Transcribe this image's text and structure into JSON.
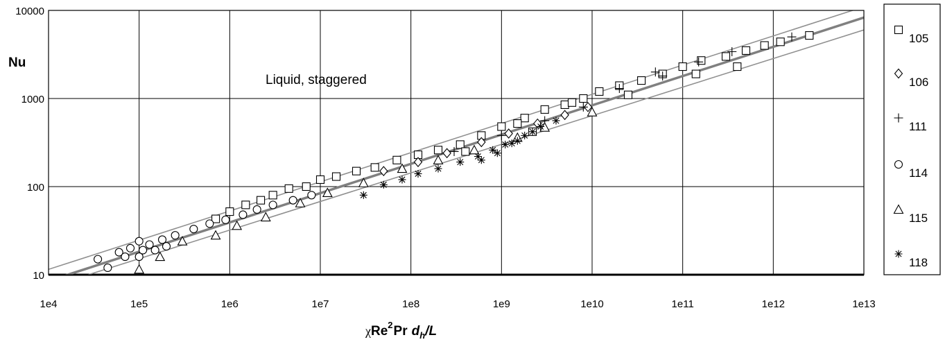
{
  "chart_data": {
    "type": "scatter",
    "title": "",
    "annotation": "Liquid, staggered",
    "ylabel": "Nu",
    "xlabel": {
      "prefix": "χ",
      "re": "Re",
      "sup": "2",
      "pr": "Pr",
      "d": "d",
      "sub": "h",
      "tail": "/L"
    },
    "x_scale": "log",
    "y_scale": "log",
    "xlim": [
      10000,
      10000000000000
    ],
    "ylim": [
      10,
      10000
    ],
    "x_ticks": [
      "1e4",
      "1e5",
      "1e6",
      "1e7",
      "1e8",
      "1e9",
      "1e10",
      "1e11",
      "1e12",
      "1e13"
    ],
    "y_ticks": [
      "10",
      "100",
      "1000",
      "10000"
    ],
    "grid": true,
    "legend_position": "right",
    "reference_lines": [
      {
        "name": "correlation",
        "points": [
          [
            10000,
            8.5
          ],
          [
            10000000000000,
            8300
          ]
        ],
        "color": "#808080"
      },
      {
        "name": "upper bound",
        "points": [
          [
            10000,
            11.5
          ],
          [
            10000000000000,
            11000
          ]
        ],
        "color": "#909090"
      },
      {
        "name": "lower bound",
        "points": [
          [
            10000,
            7.2
          ],
          [
            10000000000000,
            6000
          ]
        ],
        "color": "#909090"
      }
    ],
    "series": [
      {
        "name": "105",
        "marker": "square",
        "points": [
          [
            700000,
            43
          ],
          [
            1000000,
            52
          ],
          [
            1500000,
            62
          ],
          [
            2200000,
            70
          ],
          [
            3000000,
            80
          ],
          [
            4500000,
            95
          ],
          [
            7000000,
            100
          ],
          [
            10000000,
            120
          ],
          [
            15000000,
            130
          ],
          [
            25000000,
            150
          ],
          [
            40000000,
            165
          ],
          [
            70000000,
            200
          ],
          [
            120000000,
            230
          ],
          [
            200000000,
            260
          ],
          [
            350000000,
            300
          ],
          [
            600000000,
            380
          ],
          [
            1000000000,
            480
          ],
          [
            1800000000,
            600
          ],
          [
            3000000000,
            750
          ],
          [
            5000000000,
            850
          ],
          [
            8000000000,
            1000
          ],
          [
            12000000000,
            1200
          ],
          [
            20000000000,
            1400
          ],
          [
            35000000000,
            1600
          ],
          [
            60000000000,
            1900
          ],
          [
            100000000000,
            2300
          ],
          [
            160000000000,
            2700
          ],
          [
            300000000000,
            3000
          ],
          [
            500000000000,
            3500
          ],
          [
            800000000000,
            4000
          ],
          [
            1200000000000,
            4400
          ],
          [
            2500000000000,
            5200
          ],
          [
            140000000000,
            1900
          ],
          [
            400000000000,
            2300
          ],
          [
            25000000000,
            1100
          ],
          [
            6000000000,
            900
          ],
          [
            1500000000,
            520
          ],
          [
            2200000000,
            420
          ],
          [
            400000000,
            250
          ]
        ]
      },
      {
        "name": "106",
        "marker": "diamond",
        "points": [
          [
            50000000,
            150
          ],
          [
            120000000,
            190
          ],
          [
            250000000,
            240
          ],
          [
            600000000,
            320
          ],
          [
            1200000000,
            400
          ],
          [
            2500000000,
            520
          ],
          [
            5000000000,
            650
          ],
          [
            9000000000,
            800
          ]
        ]
      },
      {
        "name": "111",
        "marker": "plus",
        "points": [
          [
            300000000,
            250
          ],
          [
            1000000000,
            380
          ],
          [
            3000000000,
            560
          ],
          [
            8000000000,
            800
          ],
          [
            20000000000,
            1300
          ],
          [
            60000000000,
            1800
          ],
          [
            150000000000,
            2600
          ],
          [
            350000000000,
            3400
          ],
          [
            1600000000000,
            5000
          ],
          [
            50000000000,
            2000
          ]
        ]
      },
      {
        "name": "114",
        "marker": "circle",
        "points": [
          [
            35000,
            15
          ],
          [
            45000,
            12
          ],
          [
            60000,
            18
          ],
          [
            80000,
            20
          ],
          [
            100000,
            24
          ],
          [
            130000,
            22
          ],
          [
            180000,
            25
          ],
          [
            250000,
            28
          ],
          [
            400000,
            33
          ],
          [
            600000,
            38
          ],
          [
            900000,
            42
          ],
          [
            1400000,
            48
          ],
          [
            2000000,
            55
          ],
          [
            3000000,
            62
          ],
          [
            5000000,
            70
          ],
          [
            8000000,
            80
          ],
          [
            100000,
            16
          ],
          [
            150000,
            19
          ],
          [
            200000,
            21
          ],
          [
            70000,
            16
          ],
          [
            110000,
            19
          ]
        ]
      },
      {
        "name": "115",
        "marker": "triangle",
        "points": [
          [
            100000,
            11.5
          ],
          [
            170000,
            16
          ],
          [
            300000,
            24
          ],
          [
            700000,
            28
          ],
          [
            1200000,
            36
          ],
          [
            2500000,
            45
          ],
          [
            6000000,
            65
          ],
          [
            12000000,
            85
          ],
          [
            30000000,
            110
          ],
          [
            80000000,
            160
          ],
          [
            200000000,
            200
          ],
          [
            500000000,
            260
          ],
          [
            1500000000,
            360
          ],
          [
            3000000000,
            470
          ],
          [
            10000000000,
            700
          ]
        ]
      },
      {
        "name": "118",
        "marker": "asterisk",
        "points": [
          [
            30000000,
            80
          ],
          [
            50000000,
            105
          ],
          [
            80000000,
            120
          ],
          [
            120000000,
            140
          ],
          [
            200000000,
            160
          ],
          [
            350000000,
            190
          ],
          [
            550000000,
            220
          ],
          [
            800000000,
            260
          ],
          [
            1100000000,
            300
          ],
          [
            1500000000,
            330
          ],
          [
            1800000000,
            380
          ],
          [
            2200000000,
            420
          ],
          [
            2700000000,
            480
          ],
          [
            4000000000,
            560
          ],
          [
            600000000,
            200
          ],
          [
            900000000,
            240
          ],
          [
            1300000000,
            310
          ]
        ]
      }
    ]
  }
}
